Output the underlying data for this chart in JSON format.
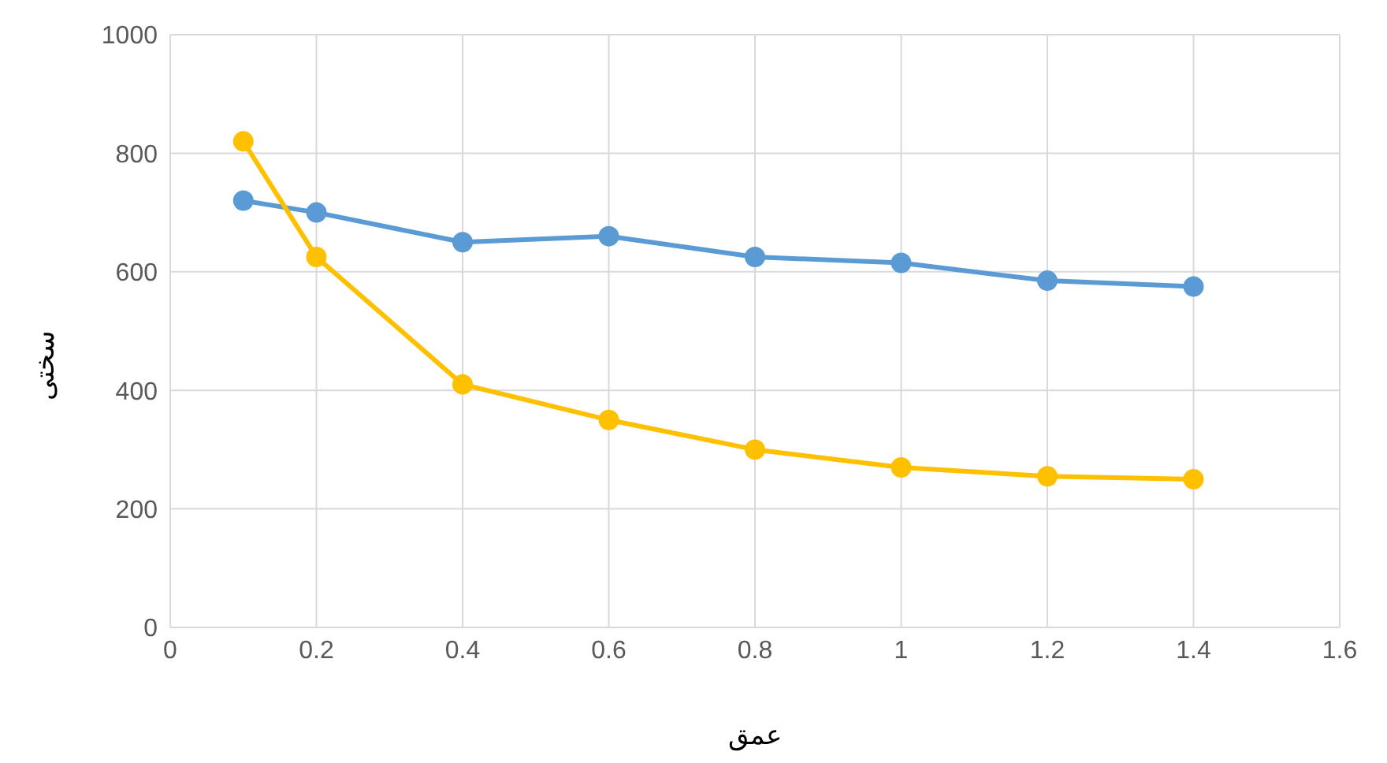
{
  "chart_data": {
    "type": "line",
    "xlabel": "عمق",
    "ylabel": "سختی",
    "x": [
      0.1,
      0.2,
      0.4,
      0.6,
      0.8,
      1,
      1.2,
      1.4
    ],
    "series": [
      {
        "color": "#5b9bd5",
        "values": [
          720,
          700,
          650,
          660,
          625,
          615,
          585,
          575
        ]
      },
      {
        "color": "#ffc000",
        "values": [
          820,
          625,
          410,
          350,
          300,
          270,
          255,
          250
        ]
      }
    ],
    "xlim": [
      0,
      1.6
    ],
    "xticks": [
      0,
      0.2,
      0.4,
      0.6,
      0.8,
      1,
      1.2,
      1.4,
      1.6
    ],
    "ylim": [
      0,
      1000
    ],
    "yticks": [
      0,
      200,
      400,
      600,
      800,
      1000
    ],
    "grid": true,
    "marker": "circle",
    "line_style": "solid",
    "legend": false
  }
}
